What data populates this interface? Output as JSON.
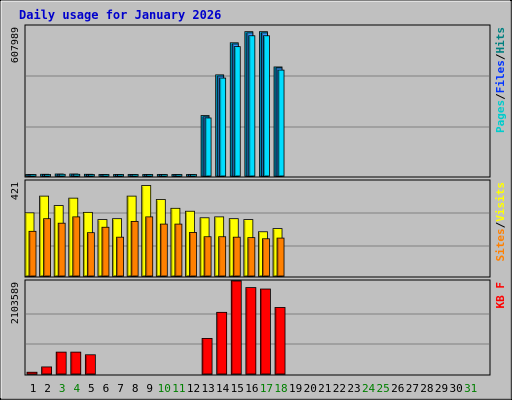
{
  "chart_data": {
    "type": "bar",
    "title": "Daily usage for January 2026",
    "categories": [
      "1",
      "2",
      "3",
      "4",
      "5",
      "6",
      "7",
      "8",
      "9",
      "10",
      "11",
      "12",
      "13",
      "14",
      "15",
      "16",
      "17",
      "18",
      "19",
      "20",
      "21",
      "22",
      "23",
      "24",
      "25",
      "26",
      "27",
      "28",
      "29",
      "30",
      "31"
    ],
    "weekend_days": [
      "3",
      "4",
      "10",
      "11",
      "17",
      "18",
      "24",
      "25",
      "31"
    ],
    "colors": {
      "title": "#0000cc",
      "frame_bg": "#c0c0c0",
      "plot_bg": "#c0c0c0",
      "grid": "#808080",
      "hits": "#00ccff",
      "files": "#0033ff",
      "pages": "#00ccff",
      "visits": "#ffff00",
      "sites": "#ff8000",
      "kbytes": "#ff0000",
      "weekend_label": "#008000",
      "weekday_label": "#000000"
    },
    "panels": [
      {
        "name": "hits-files-pages",
        "ymax_label": "607989",
        "ymax": 607989,
        "legend": [
          {
            "text": "Pages",
            "color": "#00cccc"
          },
          {
            "text": "/",
            "color": "#000000"
          },
          {
            "text": "Files",
            "color": "#0033ff"
          },
          {
            "text": "/",
            "color": "#000000"
          },
          {
            "text": "Hits",
            "color": "#008080"
          }
        ],
        "series": [
          {
            "name": "Hits",
            "values": [
              6000,
              7000,
              8000,
              8000,
              7000,
              5000,
              5000,
              5000,
              5000,
              5000,
              5000,
              5000,
              245000,
              410000,
              540000,
              585000,
              585000,
              442000,
              0,
              0,
              0,
              0,
              0,
              0,
              0,
              0,
              0,
              0,
              0,
              0,
              0
            ]
          },
          {
            "name": "Files",
            "values": [
              5000,
              6000,
              7000,
              7000,
              6000,
              4000,
              4000,
              4000,
              4000,
              4000,
              4000,
              4000,
              240000,
              405000,
              535000,
              580000,
              580000,
              438000,
              0,
              0,
              0,
              0,
              0,
              0,
              0,
              0,
              0,
              0,
              0,
              0,
              0
            ]
          }
        ]
      },
      {
        "name": "visits-sites",
        "ymax_label": "421",
        "ymax": 421,
        "legend": [
          {
            "text": "Sites",
            "color": "#ff8000"
          },
          {
            "text": "/",
            "color": "#000000"
          },
          {
            "text": "Visits",
            "color": "#ffff00"
          }
        ],
        "series": [
          {
            "name": "Visits",
            "values": [
              280,
              354,
              312,
              345,
              282,
              250,
              254,
              354,
              401,
              339,
              300,
              287,
              258,
              262,
              254,
              250,
              196,
              210,
              0,
              0,
              0,
              0,
              0,
              0,
              0,
              0,
              0,
              0,
              0,
              0,
              0
            ]
          },
          {
            "name": "Sites",
            "values": [
              198,
              254,
              234,
              262,
              192,
              216,
              172,
              242,
              262,
              230,
              230,
              193,
              174,
              174,
              172,
              170,
              165,
              168,
              0,
              0,
              0,
              0,
              0,
              0,
              0,
              0,
              0,
              0,
              0,
              0,
              0
            ]
          }
        ]
      },
      {
        "name": "kbytes",
        "ymax_label": "2103589",
        "ymax": 2103589,
        "legend": [
          {
            "text": "KB F",
            "color": "#ff0000"
          }
        ],
        "series": [
          {
            "name": "KB F",
            "values": [
              40000,
              160000,
              495000,
              495000,
              435000,
              0,
              0,
              0,
              0,
              0,
              0,
              0,
              805000,
              1395000,
              2103589,
              1955000,
              1922000,
              1505000,
              0,
              0,
              0,
              0,
              0,
              0,
              0,
              0,
              0,
              0,
              0,
              0,
              0
            ]
          }
        ]
      }
    ]
  }
}
